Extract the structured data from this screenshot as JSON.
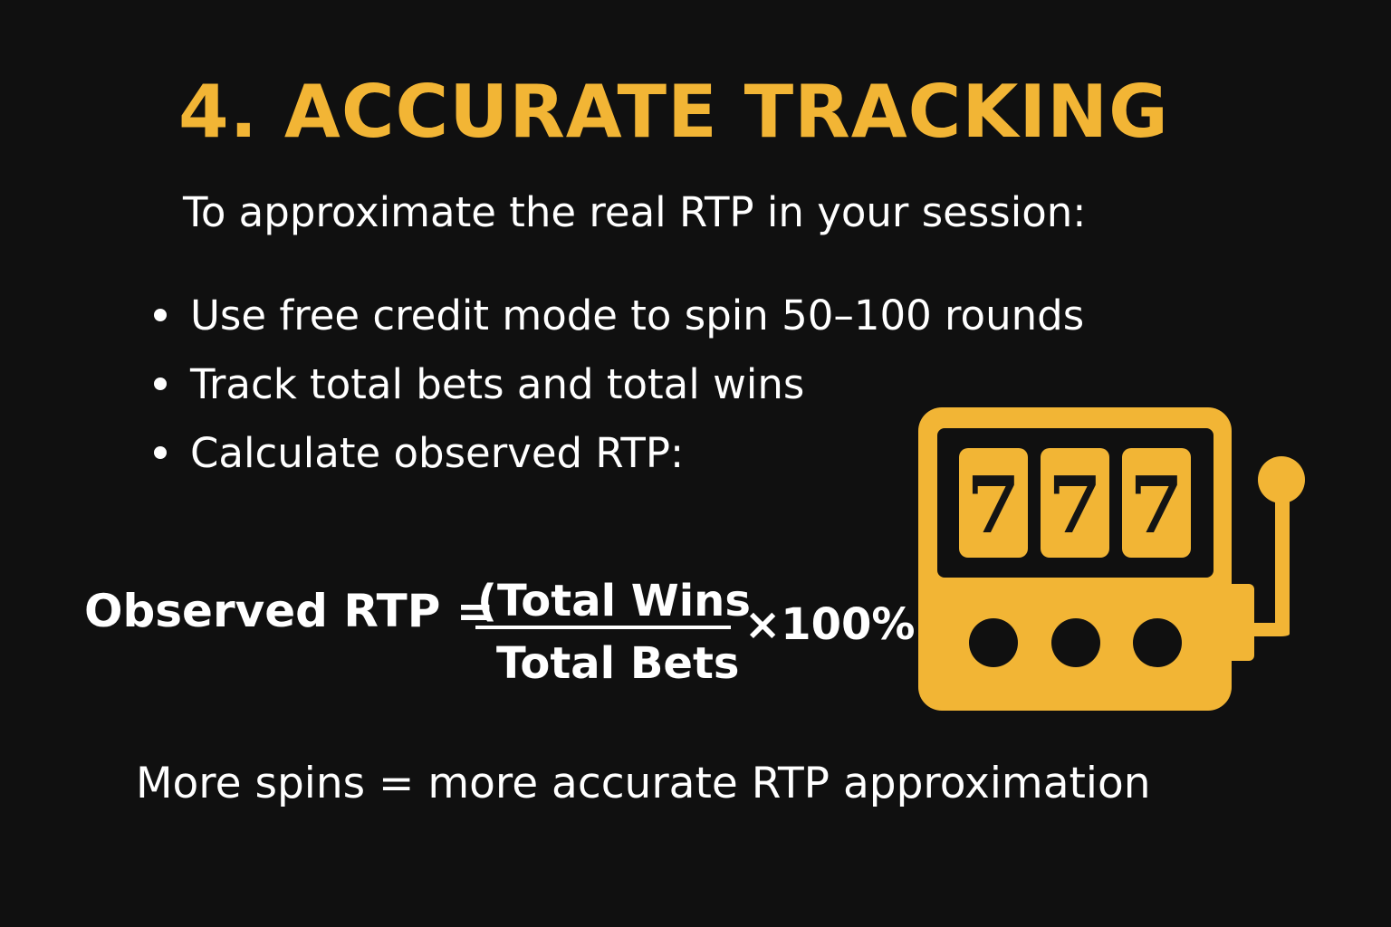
{
  "title": "4. ACCURATE TRACKING",
  "subtitle": "To approximate the real RTP in your session:",
  "bullets": [
    "Use free credit mode to spin 50–100 rounds",
    "Track total bets and total wins",
    "Calculate observed RTP:"
  ],
  "formula": {
    "lhs": "Observed RTP =",
    "numerator": "(Total Wins",
    "denominator": "Total Bets",
    "multiplier": "×100%"
  },
  "footer": "More spins = more accurate RTP approximation",
  "illustration": {
    "icon": "slot-machine-icon",
    "reel_symbols": [
      "7",
      "7",
      "7"
    ]
  },
  "colors": {
    "background": "#101010",
    "accent": "#F2B535",
    "text": "#FFFFFF"
  }
}
